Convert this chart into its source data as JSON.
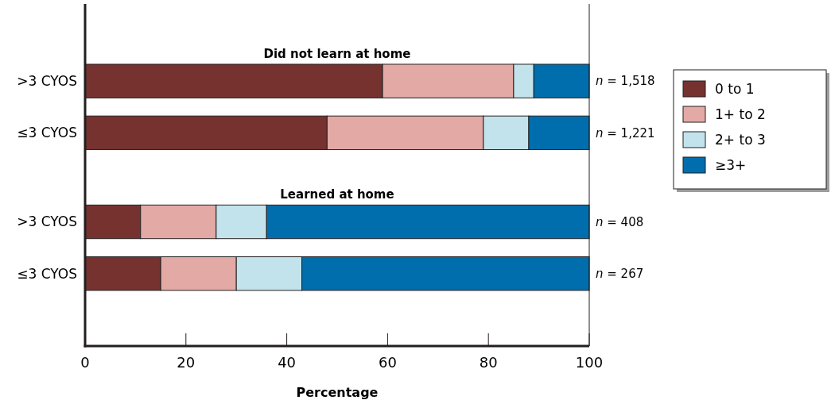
{
  "chart_data": {
    "type": "bar",
    "orientation": "horizontal",
    "stacked": true,
    "categories": [
      ">3 CYOS",
      "≤3 CYOS",
      ">3 CYOS",
      "≤3 CYOS"
    ],
    "series": [
      {
        "name": "0 to 1",
        "color": "#76322f",
        "values": [
          59,
          48,
          11,
          15
        ]
      },
      {
        "name": "1+ to 2",
        "color": "#e3a9a5",
        "values": [
          26,
          31,
          15,
          15
        ]
      },
      {
        "name": "2+ to 3",
        "color": "#c2e3ec",
        "values": [
          4,
          9,
          10,
          13
        ]
      },
      {
        "name": "≥3+",
        "color": "#006ead",
        "values": [
          11,
          12,
          64,
          57
        ]
      }
    ],
    "xlim": [
      0,
      100
    ],
    "xticks": [
      0,
      20,
      40,
      60,
      80,
      100
    ],
    "xlabel": "Percentage",
    "grid": false,
    "legend": "right",
    "annotations": [
      "Did not learn at home",
      "n = 1,518",
      "n = 1,221",
      "Learned at home",
      "n = 408",
      "n = 267"
    ]
  }
}
